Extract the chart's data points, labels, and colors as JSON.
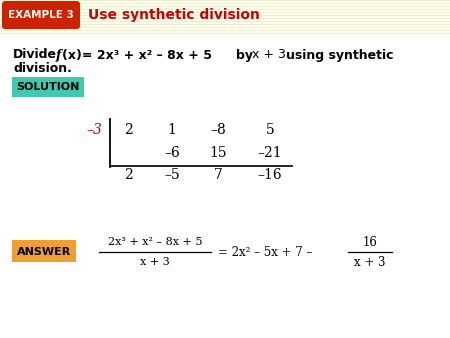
{
  "bg_color": "#ffffff",
  "header_bg_color": "#fffff0",
  "header_stripe_color": "#ffffd0",
  "example_box_color": "#cc2200",
  "example_text": "EXAMPLE 3",
  "header_title": "Use synthetic division",
  "header_title_color": "#cc0000",
  "solution_box_color": "#40c8b0",
  "solution_text": "SOLUTION",
  "answer_box_color": "#f0a030",
  "answer_text": "ANSWER",
  "synth_neg3_color": "#cc0000",
  "row1": [
    "2",
    "1",
    "–8",
    "5"
  ],
  "row2": [
    "–6",
    "15",
    "–21"
  ],
  "row3": [
    "2",
    "–5",
    "7",
    "–16"
  ]
}
